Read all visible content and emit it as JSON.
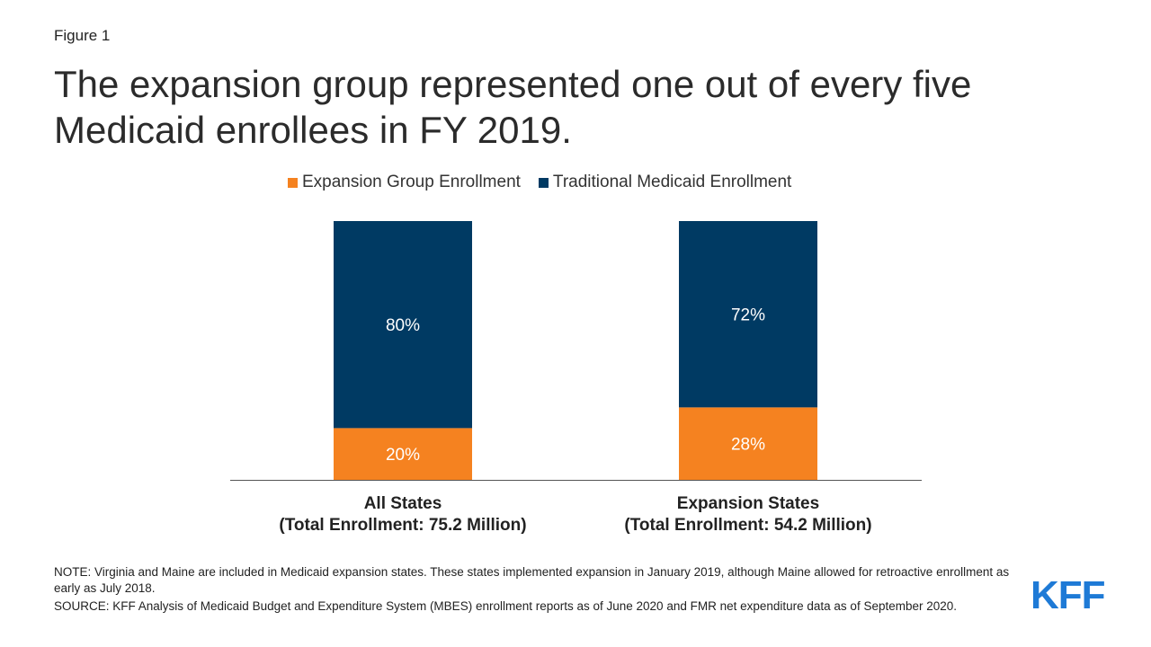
{
  "figure_label": "Figure 1",
  "title": "The expansion group represented one out of every five Medicaid enrollees in FY 2019.",
  "colors": {
    "expansion": "#f58220",
    "traditional": "#003a63",
    "axis": "#555555"
  },
  "chart_data": {
    "type": "bar",
    "stacked": true,
    "categories": [
      {
        "line1": "All States",
        "line2": "(Total Enrollment: 75.2 Million)"
      },
      {
        "line1": "Expansion States",
        "line2": "(Total Enrollment: 54.2 Million)"
      }
    ],
    "series": [
      {
        "name": "Expansion Group Enrollment",
        "values": [
          20,
          28
        ],
        "labels": [
          "20%",
          "28%"
        ],
        "color": "#f58220"
      },
      {
        "name": "Traditional Medicaid Enrollment",
        "values": [
          80,
          72
        ],
        "labels": [
          "80%",
          "72%"
        ],
        "color": "#003a63"
      }
    ],
    "ylim": [
      0,
      100
    ],
    "legend_position": "top",
    "grid": false
  },
  "notes": {
    "note": "NOTE: Virginia and Maine are included in Medicaid expansion states. These states implemented expansion in January 2019, although Maine allowed for retroactive enrollment as early as July 2018.",
    "source": "SOURCE: KFF Analysis of Medicaid Budget and Expenditure System (MBES) enrollment reports as of June 2020 and FMR net expenditure data as of September 2020."
  },
  "logo_text": "KFF"
}
